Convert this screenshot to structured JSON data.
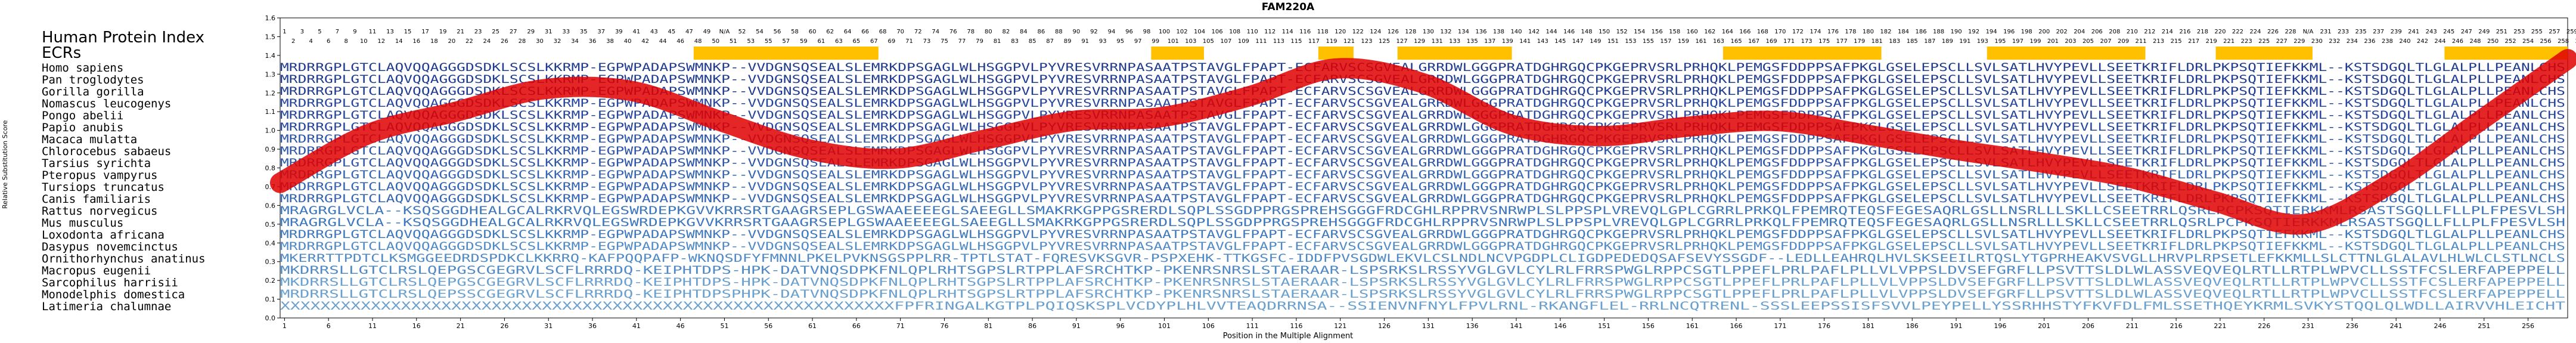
{
  "chart_data": {
    "type": "line",
    "title": "FAM220A",
    "xlabel": "Position in the Multiple Alignment",
    "ylabel": "Relative Substitution Score",
    "xlim": [
      0,
      260
    ],
    "ylim": [
      0,
      1.6
    ],
    "yticks": [
      0.0,
      0.1,
      0.2,
      0.3,
      0.4,
      0.5,
      0.6,
      0.7,
      0.8,
      0.9,
      1.0,
      1.1,
      1.2,
      1.3,
      1.4,
      1.5,
      1.6
    ],
    "xticks": [
      1,
      6,
      11,
      16,
      21,
      26,
      31,
      36,
      41,
      46,
      51,
      56,
      61,
      66,
      71,
      76,
      81,
      86,
      91,
      96,
      101,
      106,
      111,
      116,
      121,
      126,
      131,
      136,
      141,
      146,
      151,
      156,
      161,
      166,
      171,
      176,
      181,
      186,
      191,
      196,
      201,
      206,
      211,
      216,
      221,
      226,
      231,
      236,
      241,
      246,
      251,
      256
    ],
    "series": [
      {
        "x": [
          0,
          10,
          20,
          30,
          40,
          50,
          60,
          70,
          80,
          90,
          100,
          110,
          120,
          130,
          140,
          150,
          160,
          170,
          180,
          190,
          200,
          210,
          220,
          230,
          240,
          250,
          260
        ],
        "values": [
          0.72,
          0.98,
          1.1,
          1.22,
          1.21,
          1.05,
          0.9,
          0.85,
          0.95,
          1.05,
          1.07,
          1.18,
          1.33,
          1.25,
          1.03,
          0.97,
          1.02,
          1.05,
          0.98,
          0.9,
          0.83,
          0.75,
          0.62,
          0.5,
          0.72,
          1.05,
          1.38
        ]
      }
    ],
    "color": "#e00000",
    "highlight_color": "#ffc000"
  },
  "header": {
    "index_label": "Human Protein Index",
    "ecr_label": "ECRs",
    "index_row1": [
      "1",
      "3",
      "5",
      "7",
      "9",
      "11",
      "13",
      "15",
      "17",
      "19",
      "21",
      "23",
      "25",
      "27",
      "29",
      "31",
      "33",
      "35",
      "37",
      "39",
      "41",
      "43",
      "45",
      "47",
      "49",
      "N/A",
      "52",
      "54",
      "56",
      "58",
      "60",
      "62",
      "64",
      "66",
      "68",
      "70",
      "72",
      "74",
      "76",
      "78",
      "80",
      "82",
      "84",
      "86",
      "88",
      "90",
      "92",
      "94",
      "96",
      "98",
      "100",
      "102",
      "104",
      "106",
      "108",
      "110",
      "112",
      "114",
      "116",
      "118",
      "120",
      "122",
      "124",
      "126",
      "128",
      "130",
      "132",
      "134",
      "136",
      "138",
      "140",
      "142",
      "144",
      "146",
      "148",
      "150",
      "152",
      "154",
      "156",
      "158",
      "160",
      "162",
      "164",
      "166",
      "168",
      "170",
      "172",
      "174",
      "176",
      "178",
      "180",
      "182",
      "184",
      "186",
      "188",
      "190",
      "192",
      "194",
      "196",
      "198",
      "200",
      "202",
      "204",
      "206",
      "208",
      "210",
      "212",
      "214",
      "216",
      "218",
      "220",
      "222",
      "224",
      "226",
      "228",
      "N/A",
      "231",
      "233",
      "235",
      "237",
      "239",
      "241",
      "243",
      "245",
      "247",
      "249",
      "251",
      "253",
      "255",
      "257",
      "259"
    ],
    "index_row2": [
      "2",
      "4",
      "6",
      "8",
      "10",
      "12",
      "14",
      "16",
      "18",
      "20",
      "22",
      "24",
      "26",
      "28",
      "30",
      "32",
      "34",
      "36",
      "38",
      "40",
      "42",
      "44",
      "46",
      "48",
      "50",
      "51",
      "53",
      "55",
      "57",
      "59",
      "61",
      "63",
      "65",
      "67",
      "69",
      "71",
      "73",
      "75",
      "77",
      "79",
      "81",
      "83",
      "85",
      "87",
      "89",
      "91",
      "93",
      "95",
      "97",
      "99",
      "101",
      "103",
      "105",
      "107",
      "109",
      "111",
      "113",
      "115",
      "117",
      "119",
      "121",
      "123",
      "125",
      "127",
      "129",
      "131",
      "133",
      "135",
      "137",
      "139",
      "141",
      "143",
      "145",
      "147",
      "149",
      "151",
      "153",
      "155",
      "157",
      "159",
      "161",
      "163",
      "165",
      "167",
      "169",
      "171",
      "173",
      "175",
      "177",
      "179",
      "181",
      "183",
      "185",
      "187",
      "189",
      "191",
      "193",
      "195",
      "197",
      "199",
      "201",
      "203",
      "205",
      "207",
      "209",
      "211",
      "213",
      "215",
      "217",
      "219",
      "221",
      "223",
      "225",
      "227",
      "229",
      "230",
      "232",
      "234",
      "236",
      "238",
      "240",
      "242",
      "244",
      "246",
      "248",
      "250",
      "252",
      "254",
      "256",
      "258",
      "260"
    ],
    "ecr_ranges": [
      [
        48,
        68
      ],
      [
        100,
        105
      ],
      [
        119,
        122
      ],
      [
        128,
        140
      ],
      [
        165,
        182
      ],
      [
        195,
        212
      ],
      [
        221,
        231
      ],
      [
        247,
        260
      ]
    ]
  },
  "alignment": [
    {
      "species": "Homo sapiens",
      "seq": "MRDRRGPLGTCLAQVQQAGGGDSDKLSCSLKKRMP-EGPWPADAPSWMNKP--VVDGNSQSEALSLEMRKDPSGAGLWLHSGGPVLPYVRESVRRNPASAATPSTAVGLFPAPT-ECFARVSCSGVEALGRRDWLGGGPRATDGHRGQCPKGEPRVSRLPRHQKLPEMGSFDDPPSAFPKGLGSELEPSCLLSVLSATLHVYPEVLLSEETKRIFLDRLPKPSQTIEFKKML--KSTSDGQLTLGLALPLLPEANLCHS"
    },
    {
      "species": "Pan troglodytes",
      "seq": "MRDRRGPLGTCLAQVQQAGGGDSDKLSCSLKKRMP-EGPWPADAPSWMNKP--VVDGNSQSEALSLEMRKDPSGAGLWLHSGGPVLPYVRESVRRNPASAATPSTAVGLFPAPT-ECFARVSCSGVEALGRRDWLGGGPRATDGHRGQCPKGEPRVSRLPRHQKLPEMGSFDDPPSAFPKGLGSELEPSCLLSVLSATLHVYPEVLLSEETKRIFLDRLPKPSQTIEFKKML--KSTSDGQLTLGLALPLLPEANLCHS"
    },
    {
      "species": "Gorilla gorilla",
      "seq": "MRDRRGPLGTCLAQVQQAGGGDSDKLSCSLKKRMP-EGPWPADAPSWMNKP--VVDGNSQSEALSLEMRKDPSGAGLWLHSGGPVLPYVRESVRRNPASAATPSTAVGLFPAPT-ECFARVSCSGVEALGRRDWLGGGPRATDGHRGQCPKGEPRVSRLPRHQKLPEMGSFDDPPSAFPKGLGSELEPSCLLSVLSATLHVYPEVLLSEETKRIFLDRLPKPSQTIEFKKML--KSTSDGQLTLGLALPLLPEANLCHS"
    },
    {
      "species": "Nomascus leucogenys",
      "seq": "MRDRRGPLGTCLAQVQQAGGGDSDKLSCSLKKRMP-EGPWPADAPSWMNKP--VVDGNSQSEALSLEMRKDPSGAGLWLHSGGPVLPYVRESVRRNPASAATPSTAVGLFPAPT-ECFARVSCSGVEALGRRDWLGGGPRATDGHRGQCPKGEPRVSRLPRHQKLPEMGSFDDPPSAFPKGLGSELEPSCLLSVLSATLHVYPEVLLSEETKRIFLDRLPKPSQTIEFKKML--KSTSDGQLTLGLALPLLPEANLCHS"
    },
    {
      "species": "Pongo abelii",
      "seq": "MRDRRGPLGTCLAQVQQAGGGDSDKLSCSLKKRMP-EGPWPADAPSWMNKP--VVDGNSQSEALSLEMRKDPSGAGLWLHSGGPVLPYVRESVRRNPASAATPSTAVGLFPAPT-ECFARVSCSGVEALGRRDWLGGGPRATDGHRGQCPKGEPRVSRLPRHQKLPEMGSFDDPPSAFPKGLGSELEPSCLLSVLSATLHVYPEVLLSEETKRIFLDRLPKPSQTIEFKKML--KSTSDGQLTLGLALPLLPEANLCHS"
    },
    {
      "species": "Papio anubis",
      "seq": "MRDRRGPLGTCLAQVQQAGGGDSDKLSCSLKKRMP-EGPWPADAPSWMNKP--VVDGNSQSEALSLEMRKDPSGAGLWLHSGGPVLPYVRESVRRNPASAATPSTAVGLFPAPT-ECFARVSCSGVEALGRRDWLGGGPRATDGHRGQCPKGEPRVSRLPRHQKLPEMGSFDDPPSAFPKGLGSELEPSCLLSVLSATLHVYPEVLLSEETKRIFLDRLPKPSQTIEFKKML--KSTSDGQLTLGLALPLLPEANLCHS"
    },
    {
      "species": "Macaca mulatta",
      "seq": "MRDRRGPLGTCLAQVQQAGGGDSDKLSCSLKKRMP-EGPWPADAPSWMNKP--VVDGNSQSEALSLEMRKDPSGAGLWLHSGGPVLPYVRESVRRNPASAATPSTAVGLFPAPT-ECFARVSCSGVEALGRRDWLGGGPRATDGHRGQCPKGEPRVSRLPRHQKLPEMGSFDDPPSAFPKGLGSELEPSCLLSVLSATLHVYPEVLLSEETKRIFLDRLPKPSQTIEFKKML--KSTSDGQLTLGLALPLLPEANLCHS"
    },
    {
      "species": "Chlorocebus sabaeus",
      "seq": "MRDRRGPLGTCLAQVQQAGGGDSDKLSCSLKKRMP-EGPWPADAPSWMNKP--VVDGNSQSEALSLEMRKDPSGAGLWLHSGGPVLPYVRESVRRNPASAATPSTAVGLFPAPT-ECFARVSCSGVEALGRRDWLGGGPRATDGHRGQCPKGEPRVSRLPRHQKLPEMGSFDDPPSAFPKGLGSELEPSCLLSVLSATLHVYPEVLLSEETKRIFLDRLPKPSQTIEFKKML--KSTSDGQLTLGLALPLLPEANLCHS"
    },
    {
      "species": "Tarsius syrichta",
      "seq": "MRDRRGPLGTCLAQVQQAGGGDSDKLSCSLKKRMP-EGPWPADAPSWMNKP--VVDGNSQSEALSLEMRKDPSGAGLWLHSGGPVLPYVRESVRRNPASAATPSTAVGLFPAPT-ECFARVSCSGVEALGRRDWLGGGPRATDGHRGQCPKGEPRVSRLPRHQKLPEMGSFDDPPSAFPKGLGSELEPSCLLSVLSATLHVYPEVLLSEETKRIFLDRLPKPSQTIEFKKML--KSTSDGQLTLGLALPLLPEANLCHS"
    },
    {
      "species": "Pteropus vampyrus",
      "seq": "MRDRRGPLGTCLAQVQQAGGGDSDKLSCSLKKRMP-EGPWPADAPSWMNKP--VVDGNSQSEALSLEMRKDPSGAGLWLHSGGPVLPYVRESVRRNPASAATPSTAVGLFPAPT-ECFARVSCSGVEALGRRDWLGGGPRATDGHRGQCPKGEPRVSRLPRHQKLPEMGSFDDPPSAFPKGLGSELEPSCLLSVLSATLHVYPEVLLSEETKRIFLDRLPKPSQTIEFKKML--KSTSDGQLTLGLALPLLPEANLCHS"
    },
    {
      "species": "Tursiops truncatus",
      "seq": "MRDRRGPLGTCLAQVQQAGGGDSDKLSCSLKKRMP-EGPWPADAPSWMNKP--VVDGNSQSEALSLEMRKDPSGAGLWLHSGGPVLPYVRESVRRNPASAATPSTAVGLFPAPT-ECFARVSCSGVEALGRRDWLGGGPRATDGHRGQCPKGEPRVSRLPRHQKLPEMGSFDDPPSAFPKGLGSELEPSCLLSVLSATLHVYPEVLLSEETKRIFLDRLPKPSQTIEFKKML--KSTSDGQLTLGLALPLLPEANLCHS"
    },
    {
      "species": "Canis familiaris",
      "seq": "MRDRRGPLGTCLAQVQQAGGGDSDKLSCSLKKRMP-EGPWPADAPSWMNKP--VVDGNSQSEALSLEMRKDPSGAGLWLHSGGPVLPYVRESVRRNPASAATPSTAVGLFPAPT-ECFARVSCSGVEALGRRDWLGGGPRATDGHRGQCPKGEPRVSRLPRHQKLPEMGSFDDPPSAFPKGLGSELEPSCLLSVLSATLHVYPEVLLSEETKRIFLDRLPKPSQTIEFKKML--KSTSDGQLTLGLALPLLPEANLCHS"
    },
    {
      "species": "Rattus norvegicus",
      "seq": "MRAGRGLVCLA--KSQSGGDHEALGCALRKRVQLEGSWRDEPKGVVKRRSRTGAAGRSEPLGSWAAEEEEGLSAEEGLLSMAKRKGPPGSRERDLSQPLSSGDPPRGSPREHSGGGFRDCGHLRPPRVSNRWPLSLPPSPLVREVQLGPLCGRRLPRKQLFPEMRQTEQSFEGESAQRLGSLLNSRLLLSKLLCSEETRRLQSRLPCPKSQTIERKKMLRSASTSGQLLFLLPLFPESVLSH"
    },
    {
      "species": "Mus musculus",
      "seq": "MRAGRGLVCLA--KSQSGGDHEALGCALRKRVQLEGSWRDEPKGVVKRRSRTGAAGRSEPLGSWAAEEEEGLSAEEGLLSMAKRKGPPGSRERDLSQPLSSGDPPRGSPREHSGGGFRDCGHLRPPRVSNRWPLSLPPSPLVREVQLGPLCGRRLPRKQLFPEMRQTEQSFEGESAQRLGSLLNSRLLLSKLLCSEETRRLQSRLPCPKSQTIERKKMLRSASTSGQLLFLLPLFPESVLSH"
    },
    {
      "species": "Loxodonta africana",
      "seq": "MRDRRGPLGTCLAQVQQAGGGDSDKLSCSLKKRMP-EGPWPADAPSWMNKP--VVDGNSQSEALSLEMRKDPSGAGLWLHSGGPVLPYVRESVRRNPASAATPSTAVGLFPAPT-ECFARVSCSGVEALGRRDWLGGGPRATDGHRGQCPKGEPRVSRLPRHQKLPEMGSFDDPPSAFPKGLGSELEPSCLLSVLSATLHVYPEVLLSEETKRIFLDRLPKPSQTIEFKKML--KSTSDGQLTLGLALPLLPEANLCHS"
    },
    {
      "species": "Dasypus novemcinctus",
      "seq": "MRDRRGPLGTCLAQVQQAGGGDSDKLSCSLKKRMP-EGPWPADAPSWMNKP--VVDGNSQSEALSLEMRKDPSGAGLWLHSGGPVLPYVRESVRRNPASAATPSTAVGLFPAPT-ECFARVSCSGVEALGRRDWLGGGPRATDGHRGQCPKGEPRVSRLPRHQKLPEMGSFDDPPSAFPKGLGSELEPSCLLSVLSATLHVYPEVLLSEETKRIFLDRLPKPSQTIEFKKML--KSTSDGQLTLGLALPLLPEANLCHS"
    },
    {
      "species": "Ornithorhynchus anatinus",
      "seq": "MKERRTTPDTCLKSMGGEEDRDSPDKCLKKRRQ-KAFPQQPAFP-WKNQSDFYFMNNLPKELPVKNSGSPPLRR-TPTLSTAT-FQRESVKSGVR-PSPXEHK-TTKGSFC-IDDFPVSGDWLEKVLCSLNDLNCVPGDPLCLIGDPEDEDQSAFSEVYSSGDF--LEDLLEAHRQLHVLSKSEEILRTQSLYTGPRHEAKVSVGLLHRVPLRPSETLEFKKMLLSLCTTNLGLALAVLHLWLCLSTLNCLS"
    },
    {
      "species": "Macropus eugenii",
      "seq": "MKDRRSLLGTCLRSLQEPGSCGEGRVLSCFLRRRDQ-KEIPHTDPS-HPK-DATVNQSDPKFNLQPLRHTSGPSLRTPPLAFSRCHTKP-PKENRSNRSLSTAERAAR-LSPSRKSLRSSYVGLGVLCYLRLFRRSPWGLRPPCSGTLPPEFLPRLPAFLPLLVLVPPSLDVSEFGRFLLPSVTTSLDLWLASSVEQVEQLRTLLRTPLWPVCLLSSTFCSLERFAPEPPELL"
    },
    {
      "species": "Sarcophilus harrisii",
      "seq": "MKDRRSLLGTCLRSLQEPGSCGEGRVLSCFLRRRDQ-KEIPHTDPS-HPK-DATVNQSDPKFNLQPLRHTSGPSLRTPPLAFSRCHTKP-PKENRSNRSLSTAERAAR-LSPSRKSLRSSYVGLGVLCYLRLFRRSPWGLRPPCSGTLPPEFLPRLPAFLPLLVLVPPSLDVSEFGRFLLPSVTTSLDLWLASSVEQVEQLRTLLRTPLWPVCLLSSTFCSLERFAPEPPELL"
    },
    {
      "species": "Monodelphis domestica",
      "seq": "MRDRRSLLGTCLRSLQEPSSCGEGRVLSCFLRRRDQ-KEIPHTDPSPHPK-DATVNQSDPKFNLQPLRHTSGPSLRTPPLAFSRCHTKP-PKENRSNRSLSTAERAAR-LSPSRKSLRSSYVGLGVLCYLRLFRRSPWGLRPPCSGTLPPEFLPRLPAFLPLLVLVPPSLDVSEFGRFLLPSVTTSLDLWLASSVEQVEQLRTLLRTPLWPVCLLSSTFCSLERFAPEPPELL"
    },
    {
      "species": "Latimeria chalumnae",
      "seq": "XXXXXXXXXXXXXXXXXXXXXXXXXXXXXXXXXXXXXXXXXXXXXXXXXXXXXXXXXXXXXFPFRINGALKGTPLPQIQSKSPLVCDYPLHLVVTEAQDRRNSA--SSIENVNFNYLFPVLRNL-RKANGFLEL-RRLNCQTRENL-SSSLEEPSSISFSVVLPEYPELLYSSRHHSTYFKVFDLFMLSSETHQEYKRMLSVKYSTQQLQLWDLLAIRVVHLEICHT"
    }
  ]
}
